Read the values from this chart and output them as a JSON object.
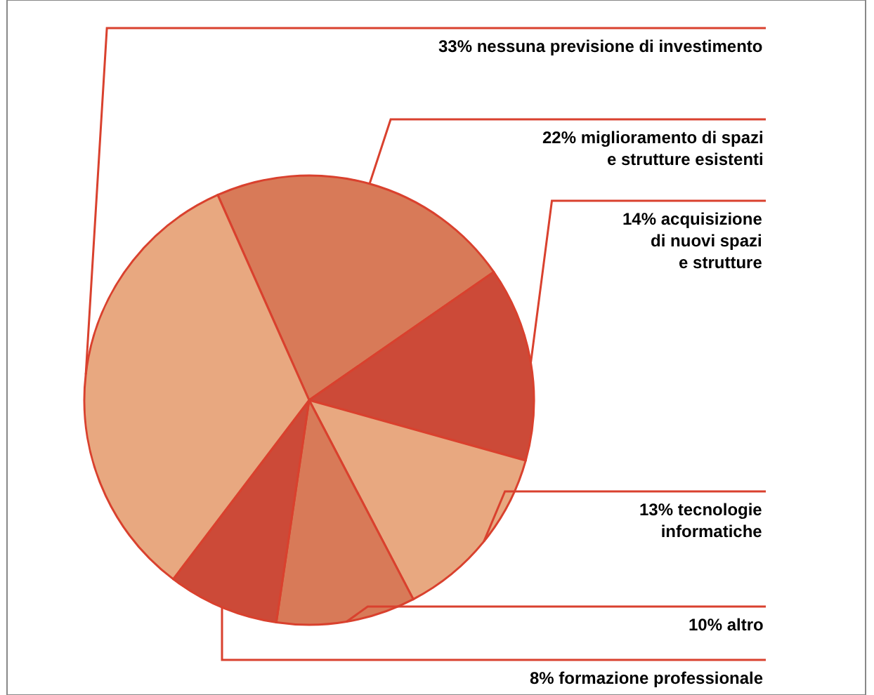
{
  "chart_data": {
    "type": "pie",
    "categories": [
      "miglioramento di spazi\ne strutture esistenti",
      "acquisizione\ndi nuovi spazi\ne strutture",
      "tecnologie\ninformatiche",
      "altro",
      "formazione professionale",
      "nessuna previsione di investimento"
    ],
    "values": [
      22,
      14,
      13,
      10,
      8,
      33
    ],
    "value_labels": [
      "22%",
      "14%",
      "13%",
      "10%",
      "8%",
      "33%"
    ],
    "colors": [
      "#d87a58",
      "#cc4a38",
      "#e8a880",
      "#d87a58",
      "#cc4a38",
      "#e8a880"
    ]
  }
}
